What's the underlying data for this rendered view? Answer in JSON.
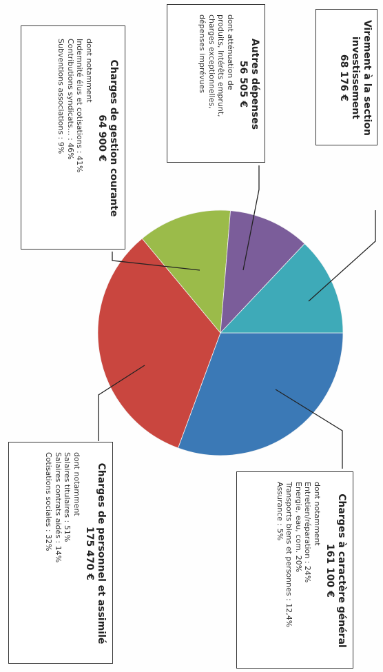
{
  "chart_data": {
    "type": "pie",
    "unit": "€",
    "slices": [
      {
        "label": "Charges à caractère général",
        "value": 161100,
        "color": "#3b79b6"
      },
      {
        "label": "Charges de personnel et assimilé",
        "value": 175470,
        "color": "#c9463f"
      },
      {
        "label": "Charges de gestion courante",
        "value": 64900,
        "color": "#9bbb4a"
      },
      {
        "label": "Autres dépenses",
        "value": 56505,
        "color": "#7b5d9a"
      },
      {
        "label": "Virement à la section investissement",
        "value": 68176,
        "color": "#3eaab8"
      }
    ]
  },
  "labels": {
    "virement": {
      "title_lines": [
        "Virement à la section",
        "investissement"
      ],
      "amount": "68 176  €"
    },
    "autres": {
      "title": "Autres dépenses",
      "amount": "56 505  €",
      "lines": [
        "dont atténuation de",
        "produits, Intérêts emprunt,",
        "charges exceptionnelles,",
        "dépenses imprévues"
      ]
    },
    "gestion": {
      "title": "Charges de gestion courante",
      "amount": "64 900  €",
      "lines": [
        "dont notamment",
        "Indemnité élus et cotisations : 41%",
        "Contributions syndicats… : 46%",
        "Subventions associations : 9%"
      ]
    },
    "general": {
      "title": "Charges à caractère général",
      "amount": "161 100 €",
      "lines": [
        "dont notamment",
        "Entretien/réparation : 24%",
        "Energie, eau, com. 20%",
        "Transports biens et personnes : 12,4%",
        "Assurance : 5%"
      ]
    },
    "personnel": {
      "title": "Charges de personnel et assimilé",
      "amount": "175 470 €",
      "lines": [
        "dont notamment",
        "Salaires titulaires : 51%",
        "Salaires contrats aidés : 14%",
        "Cotisations sociales : 32%"
      ]
    }
  }
}
